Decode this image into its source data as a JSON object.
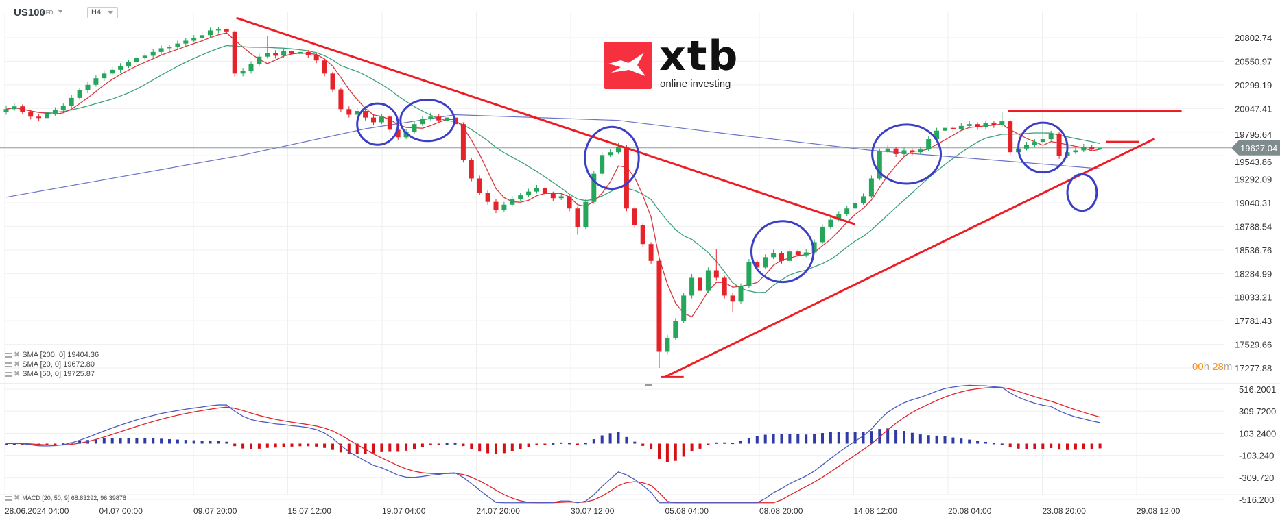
{
  "header": {
    "symbol": "US100",
    "instrument_type": "CFD",
    "timeframe": "H4"
  },
  "logo": {
    "word": "xtb",
    "tagline": "online investing"
  },
  "legend": {
    "sma200": "SMA [200, 0] 19404.36",
    "sma20": "SMA [20, 0] 19672.80",
    "sma50": "SMA [50, 0] 19725.87",
    "macd": "MACD [20, 50, 9] 68.83292, 96.39878"
  },
  "timer": {
    "hours": "00",
    "h": "h",
    "minutes": "28",
    "m": "m"
  },
  "colors": {
    "up": "#26a65b",
    "down": "#e5232b",
    "sma20": "#d9363e",
    "sma50": "#3aa17a",
    "sma200": "#6b73c9",
    "annotation_line": "#ee1c25",
    "annotation_circle": "#3a3fc6",
    "macd": "#4b5bbf",
    "signal": "#e0242c",
    "hist_pos": "#2f3aa6",
    "hist_neg": "#d60f16",
    "price_tag": "#7f8c8d",
    "timer": "#f7941d"
  },
  "chart_data": {
    "type": "candlestick",
    "symbol": "US100",
    "timeframe": "H4",
    "price_axis": {
      "ticks": [
        "20802.74",
        "20550.97",
        "20299.19",
        "20047.41",
        "19795.64",
        "19543.86",
        "19292.09",
        "19040.31",
        "18788.54",
        "18536.76",
        "18284.99",
        "18033.21",
        "17781.43",
        "17529.66",
        "17277.88"
      ],
      "range": [
        17277.88,
        20802.74
      ]
    },
    "current_price": "19627.04",
    "macd_axis": {
      "ticks": [
        "516.2001",
        "309.7200",
        "103.2400",
        "-103.240",
        "-309.720",
        "-516.200"
      ],
      "range": [
        -516.2,
        516.2
      ]
    },
    "x_ticks": [
      "28.06.2024  04:00",
      "04.07  00:00",
      "09.07  20:00",
      "15.07  12:00",
      "19.07  04:00",
      "24.07  20:00",
      "30.07  12:00",
      "05.08  04:00",
      "08.08  20:00",
      "14.08  12:00",
      "20.08  04:00",
      "23.08  20:00",
      "29.08  12:00"
    ],
    "ohlc": [
      [
        20010,
        20080,
        19980,
        20040
      ],
      [
        20040,
        20100,
        20020,
        20070
      ],
      [
        20070,
        20090,
        19990,
        20010
      ],
      [
        20010,
        20030,
        19930,
        19960
      ],
      [
        19960,
        19990,
        19910,
        19945
      ],
      [
        19945,
        20010,
        19920,
        19990
      ],
      [
        19990,
        20060,
        19970,
        20030
      ],
      [
        20030,
        20100,
        20010,
        20075
      ],
      [
        20075,
        20190,
        20050,
        20160
      ],
      [
        20160,
        20270,
        20140,
        20240
      ],
      [
        20240,
        20330,
        20210,
        20300
      ],
      [
        20300,
        20400,
        20280,
        20370
      ],
      [
        20370,
        20450,
        20340,
        20420
      ],
      [
        20420,
        20490,
        20400,
        20460
      ],
      [
        20460,
        20530,
        20430,
        20500
      ],
      [
        20500,
        20570,
        20480,
        20540
      ],
      [
        20540,
        20620,
        20510,
        20590
      ],
      [
        20590,
        20640,
        20560,
        20610
      ],
      [
        20610,
        20680,
        20590,
        20650
      ],
      [
        20650,
        20720,
        20620,
        20690
      ],
      [
        20690,
        20730,
        20660,
        20700
      ],
      [
        20700,
        20770,
        20680,
        20740
      ],
      [
        20740,
        20800,
        20710,
        20770
      ],
      [
        20770,
        20830,
        20750,
        20800
      ],
      [
        20800,
        20860,
        20780,
        20830
      ],
      [
        20830,
        20910,
        20810,
        20880
      ],
      [
        20880,
        20920,
        20850,
        20890
      ],
      [
        20890,
        20900,
        20840,
        20870
      ],
      [
        20870,
        20880,
        20380,
        20420
      ],
      [
        20420,
        20480,
        20390,
        20450
      ],
      [
        20450,
        20550,
        20420,
        20520
      ],
      [
        20520,
        20630,
        20500,
        20600
      ],
      [
        20600,
        20820,
        20580,
        20640
      ],
      [
        20640,
        20670,
        20580,
        20610
      ],
      [
        20610,
        20690,
        20590,
        20660
      ],
      [
        20660,
        20680,
        20600,
        20630
      ],
      [
        20630,
        20680,
        20610,
        20650
      ],
      [
        20650,
        20670,
        20590,
        20620
      ],
      [
        20620,
        20640,
        20530,
        20560
      ],
      [
        20560,
        20580,
        20390,
        20420
      ],
      [
        20420,
        20440,
        20220,
        20250
      ],
      [
        20250,
        20270,
        20010,
        20040
      ],
      [
        20040,
        20070,
        19950,
        19980
      ],
      [
        19980,
        20050,
        19960,
        20020
      ],
      [
        20020,
        20040,
        19920,
        19950
      ],
      [
        19950,
        19980,
        19870,
        19900
      ],
      [
        19900,
        19990,
        19880,
        19960
      ],
      [
        19960,
        19980,
        19790,
        19820
      ],
      [
        19820,
        19840,
        19710,
        19740
      ],
      [
        19740,
        19830,
        19720,
        19800
      ],
      [
        19800,
        19910,
        19780,
        19880
      ],
      [
        19880,
        19970,
        19860,
        19940
      ],
      [
        19940,
        20000,
        19920,
        19960
      ],
      [
        19960,
        19990,
        19890,
        19920
      ],
      [
        19920,
        19980,
        19900,
        19950
      ],
      [
        19950,
        19970,
        19850,
        19880
      ],
      [
        19880,
        19900,
        19470,
        19500
      ],
      [
        19500,
        19520,
        19270,
        19300
      ],
      [
        19300,
        19330,
        19120,
        19150
      ],
      [
        19150,
        19180,
        19020,
        19050
      ],
      [
        19050,
        19080,
        18930,
        18960
      ],
      [
        18960,
        19050,
        18940,
        19020
      ],
      [
        19020,
        19110,
        19000,
        19080
      ],
      [
        19080,
        19150,
        19060,
        19120
      ],
      [
        19120,
        19190,
        19100,
        19160
      ],
      [
        19160,
        19230,
        19140,
        19200
      ],
      [
        19200,
        19220,
        19110,
        19140
      ],
      [
        19140,
        19160,
        19060,
        19090
      ],
      [
        19090,
        19140,
        19070,
        19110
      ],
      [
        19110,
        19130,
        18950,
        18980
      ],
      [
        18980,
        19000,
        18700,
        18780
      ],
      [
        18780,
        19080,
        18760,
        19050
      ],
      [
        19050,
        19380,
        19030,
        19350
      ],
      [
        19350,
        19580,
        19330,
        19550
      ],
      [
        19550,
        19610,
        19530,
        19580
      ],
      [
        19580,
        19680,
        19560,
        19640
      ],
      [
        19640,
        19660,
        18950,
        18980
      ],
      [
        18980,
        19000,
        18770,
        18800
      ],
      [
        18800,
        18820,
        18570,
        18600
      ],
      [
        18600,
        18620,
        18390,
        18420
      ],
      [
        18420,
        18440,
        17278,
        17450
      ],
      [
        17450,
        17630,
        17420,
        17600
      ],
      [
        17600,
        17810,
        17580,
        17780
      ],
      [
        17780,
        18080,
        17760,
        18050
      ],
      [
        18050,
        18280,
        18020,
        18240
      ],
      [
        18240,
        18260,
        18070,
        18100
      ],
      [
        18100,
        18350,
        18080,
        18320
      ],
      [
        18320,
        18550,
        18210,
        18240
      ],
      [
        18240,
        18260,
        18020,
        18050
      ],
      [
        18050,
        18080,
        17870,
        17985
      ],
      [
        17985,
        18180,
        17960,
        18150
      ],
      [
        18150,
        18440,
        18130,
        18410
      ],
      [
        18410,
        18430,
        18320,
        18350
      ],
      [
        18350,
        18490,
        18330,
        18460
      ],
      [
        18460,
        18540,
        18440,
        18500
      ],
      [
        18500,
        18520,
        18390,
        18420
      ],
      [
        18420,
        18560,
        18400,
        18520
      ],
      [
        18520,
        18540,
        18450,
        18480
      ],
      [
        18480,
        18550,
        18460,
        18510
      ],
      [
        18510,
        18650,
        18490,
        18620
      ],
      [
        18620,
        18810,
        18600,
        18780
      ],
      [
        18780,
        18890,
        18760,
        18860
      ],
      [
        18860,
        18950,
        18840,
        18920
      ],
      [
        18920,
        19010,
        18900,
        18980
      ],
      [
        18980,
        19070,
        18960,
        19040
      ],
      [
        19040,
        19140,
        19020,
        19110
      ],
      [
        19110,
        19330,
        19090,
        19300
      ],
      [
        19300,
        19620,
        19280,
        19590
      ],
      [
        19590,
        19660,
        19570,
        19620
      ],
      [
        19620,
        19640,
        19530,
        19560
      ],
      [
        19560,
        19630,
        19540,
        19600
      ],
      [
        19600,
        19620,
        19550,
        19580
      ],
      [
        19580,
        19640,
        19560,
        19610
      ],
      [
        19610,
        19750,
        19590,
        19720
      ],
      [
        19720,
        19840,
        19700,
        19810
      ],
      [
        19810,
        19870,
        19790,
        19840
      ],
      [
        19840,
        19860,
        19800,
        19830
      ],
      [
        19830,
        19890,
        19810,
        19860
      ],
      [
        19860,
        19910,
        19840,
        19880
      ],
      [
        19880,
        19900,
        19820,
        19850
      ],
      [
        19850,
        19920,
        19830,
        19890
      ],
      [
        19890,
        19910,
        19840,
        19870
      ],
      [
        19870,
        20010,
        19850,
        19910
      ],
      [
        19910,
        19930,
        19550,
        19580
      ],
      [
        19580,
        19650,
        19560,
        19620
      ],
      [
        19620,
        19690,
        19600,
        19660
      ],
      [
        19660,
        19720,
        19640,
        19690
      ],
      [
        19690,
        19880,
        19670,
        19720
      ],
      [
        19720,
        19810,
        19700,
        19780
      ],
      [
        19780,
        19800,
        19510,
        19540
      ],
      [
        19540,
        19610,
        19520,
        19580
      ],
      [
        19580,
        19630,
        19560,
        19600
      ],
      [
        19600,
        19670,
        19580,
        19640
      ],
      [
        19640,
        19660,
        19590,
        19610
      ],
      [
        19610,
        19645,
        19595,
        19627
      ]
    ],
    "sma200_points": [
      [
        0,
        19100
      ],
      [
        29,
        19550
      ],
      [
        44,
        19830
      ],
      [
        55,
        19980
      ],
      [
        75,
        19920
      ],
      [
        89,
        19770
      ],
      [
        106,
        19600
      ],
      [
        119,
        19510
      ],
      [
        134,
        19404
      ]
    ],
    "annotations": {
      "lines": [
        {
          "from": [
            28.2,
            21014
          ],
          "to": [
            104,
            18811
          ]
        },
        {
          "from": [
            80.7,
            17180
          ],
          "to": [
            140.7,
            19725
          ]
        },
        {
          "from": [
            80.2,
            17180
          ],
          "to": [
            83,
            17180
          ]
        },
        {
          "from": [
            122.7,
            20019
          ],
          "to": [
            144,
            20019
          ]
        },
        {
          "from": [
            134.7,
            19690
          ],
          "to": [
            138.8,
            19690
          ]
        }
      ],
      "circles": [
        {
          "center": [
            45.5,
            19880
          ],
          "radius_candles": 2.5,
          "radius_price": 220
        },
        {
          "center": [
            51.6,
            19920
          ],
          "radius_candles": 3.3,
          "radius_price": 220
        },
        {
          "center": [
            74.2,
            19520
          ],
          "radius_candles": 3.3,
          "radius_price": 330
        },
        {
          "center": [
            110.3,
            19560
          ],
          "radius_candles": 4.2,
          "radius_price": 315
        },
        {
          "center": [
            95.1,
            18520
          ],
          "radius_candles": 3.8,
          "radius_price": 325
        },
        {
          "center": [
            127,
            19630
          ],
          "radius_candles": 3.0,
          "radius_price": 265
        },
        {
          "center": [
            131.8,
            19150
          ],
          "radius_candles": 1.8,
          "radius_price": 195
        }
      ]
    }
  }
}
